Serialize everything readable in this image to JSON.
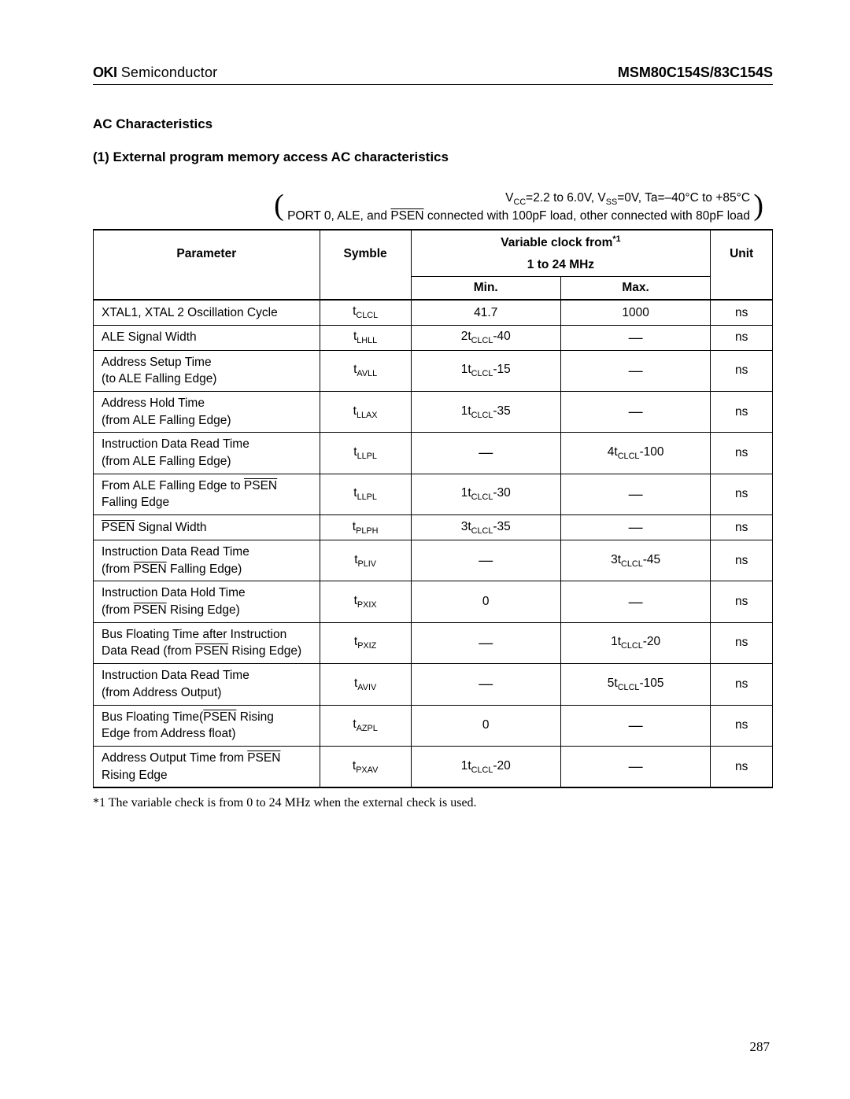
{
  "header": {
    "brand_bold": "OKI",
    "brand_light": " Semiconductor",
    "part": "MSM80C154S/83C154S"
  },
  "titles": {
    "section": "AC Characteristics",
    "subsection": "(1) External program memory access AC characteristics"
  },
  "conditions": {
    "line1_pre": "V",
    "line1_cc": "CC",
    "line1_mid": "=2.2 to 6.0V, V",
    "line1_ss": "SS",
    "line1_post": "=0V, Ta=–40°C to +85°C",
    "line2_pre": "PORT 0, ALE, and ",
    "line2_psen": "PSEN",
    "line2_post": " connected with 100pF load, other connected with 80pF load"
  },
  "table": {
    "headers": {
      "param": "Parameter",
      "symbol": "Symble",
      "varclock_l1": "Variable clock from",
      "varclock_sup": "*1",
      "varclock_l2": "1 to 24 MHz",
      "min": "Min.",
      "max": "Max.",
      "unit": "Unit"
    },
    "rows": [
      {
        "param_html": "XTAL1, XTAL 2 Oscillation Cycle",
        "sym_base": "t",
        "sym_sub": "CLCL",
        "min_html": "41.7",
        "max_html": "1000",
        "unit": "ns"
      },
      {
        "param_html": "ALE Signal Width",
        "sym_base": "t",
        "sym_sub": "LHLL",
        "min_html": "2t<sub>CLCL</sub>-40",
        "max_html": "—",
        "unit": "ns"
      },
      {
        "param_html": "Address Setup Time<br>(to ALE Falling Edge)",
        "sym_base": "t",
        "sym_sub": "AVLL",
        "min_html": "1t<sub>CLCL</sub>-15",
        "max_html": "—",
        "unit": "ns"
      },
      {
        "param_html": "Address Hold Time<br>(from ALE Falling Edge)",
        "sym_base": "t",
        "sym_sub": "LLAX",
        "min_html": "1t<sub>CLCL</sub>-35",
        "max_html": "—",
        "unit": "ns"
      },
      {
        "param_html": "Instruction Data Read Time<br>(from ALE Falling Edge)",
        "sym_base": "t",
        "sym_sub": "LLPL",
        "min_html": "—",
        "max_html": "4t<sub>CLCL</sub>-100",
        "unit": "ns"
      },
      {
        "param_html": "From ALE Falling Edge to <span class=\"overline\">PSEN</span><br>Falling Edge",
        "sym_base": "t",
        "sym_sub": "LLPL",
        "min_html": "1t<sub>CLCL</sub>-30",
        "max_html": "—",
        "unit": "ns"
      },
      {
        "param_html": "<span class=\"overline\">PSEN</span> Signal Width",
        "sym_base": "t",
        "sym_sub": "PLPH",
        "min_html": "3t<sub>CLCL</sub>-35",
        "max_html": "—",
        "unit": "ns"
      },
      {
        "param_html": "Instruction Data Read Time<br>(from <span class=\"overline\">PSEN</span> Falling Edge)",
        "sym_base": "t",
        "sym_sub": "PLIV",
        "min_html": "—",
        "max_html": "3t<sub>CLCL</sub>-45",
        "unit": "ns"
      },
      {
        "param_html": "Instruction Data Hold Time<br>(from <span class=\"overline\">PSEN</span> Rising Edge)",
        "sym_base": "t",
        "sym_sub": "PXIX",
        "min_html": "0",
        "max_html": "—",
        "unit": "ns"
      },
      {
        "param_html": "Bus Floating Time after Instruction<br>Data Read (from <span class=\"overline\">PSEN</span> Rising Edge)",
        "sym_base": "t",
        "sym_sub": "PXIZ",
        "min_html": "—",
        "max_html": "1t<sub>CLCL</sub>-20",
        "unit": "ns"
      },
      {
        "param_html": "Instruction Data Read Time<br>(from Address Output)",
        "sym_base": "t",
        "sym_sub": "AVIV",
        "min_html": "—",
        "max_html": "5t<sub>CLCL</sub>-105",
        "unit": "ns"
      },
      {
        "param_html": "Bus Floating Time(<span class=\"overline\">PSEN</span> Rising<br>Edge from Address float)",
        "sym_base": "t",
        "sym_sub": "AZPL",
        "min_html": "0",
        "max_html": "—",
        "unit": "ns"
      },
      {
        "param_html": "Address Output Time from <span class=\"overline\">PSEN</span><br>Rising Edge",
        "sym_base": "t",
        "sym_sub": "PXAV",
        "min_html": "1t<sub>CLCL</sub>-20",
        "max_html": "—",
        "unit": "ns"
      }
    ]
  },
  "footnote": "*1  The variable check is from 0 to 24 MHz when the external check is used.",
  "page_number": "287"
}
